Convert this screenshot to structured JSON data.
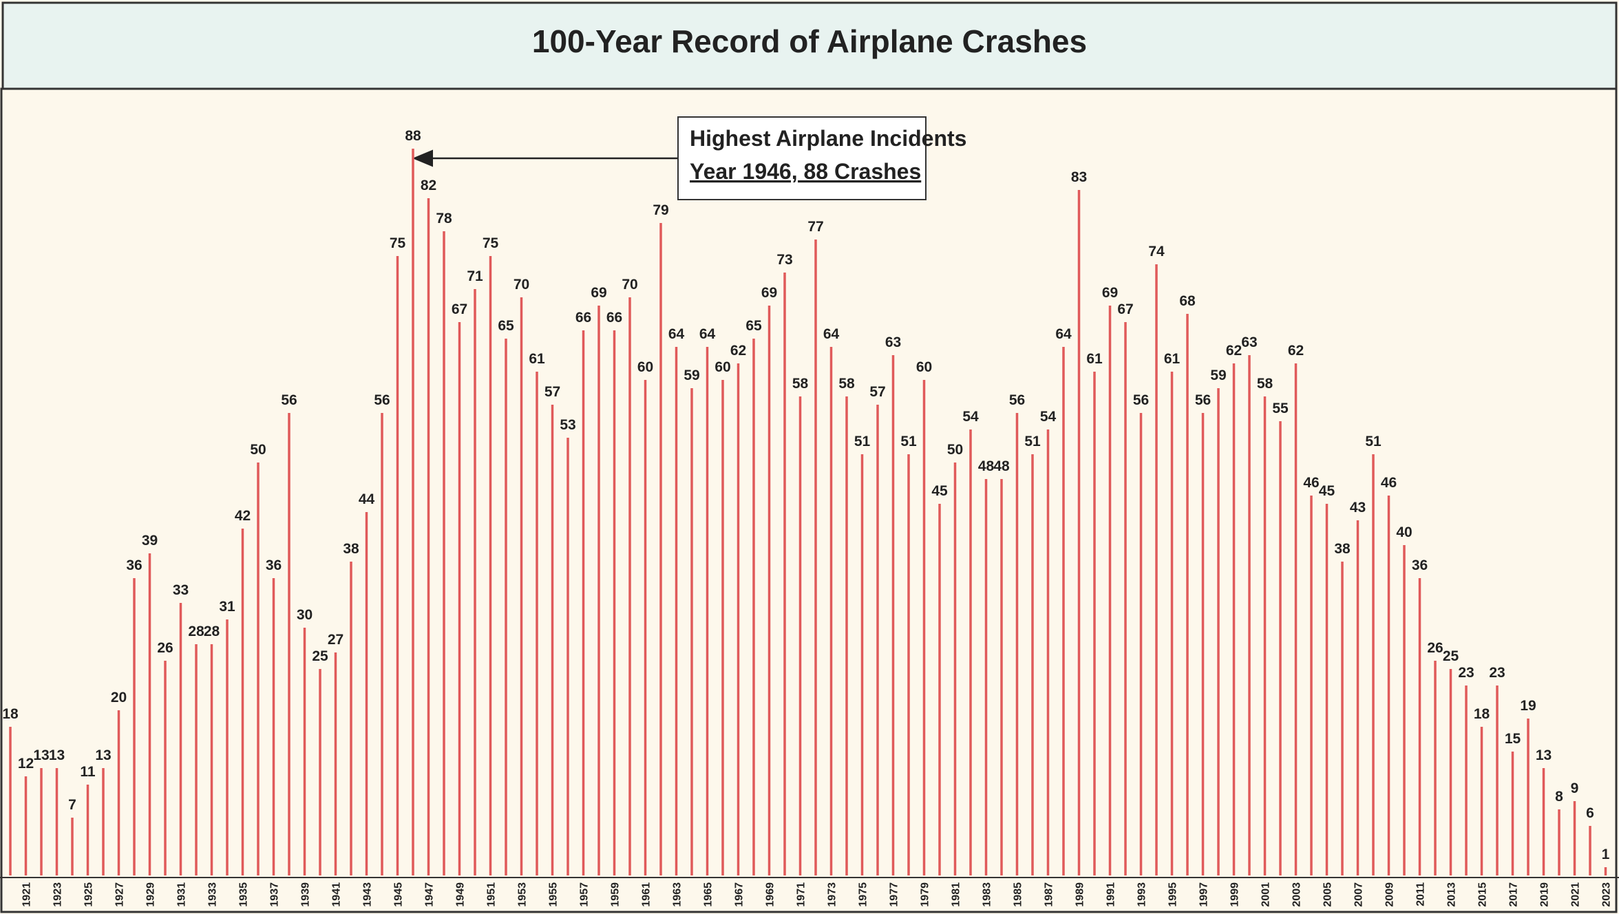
{
  "chart_data": {
    "type": "bar",
    "title": "100-Year Record of Airplane Crashes",
    "categories": [
      null,
      "1921",
      null,
      "1923",
      null,
      "1925",
      null,
      "1927",
      null,
      "1929",
      null,
      "1931",
      null,
      "1933",
      null,
      "1935",
      null,
      "1937",
      null,
      "1939",
      null,
      "1941",
      null,
      "1943",
      null,
      "1945",
      null,
      "1947",
      null,
      "1949",
      null,
      "1951",
      null,
      "1953",
      null,
      "1955",
      null,
      "1957",
      null,
      "1959",
      null,
      "1961",
      null,
      "1963",
      null,
      "1965",
      null,
      "1967",
      null,
      "1969",
      null,
      "1971",
      null,
      "1973",
      null,
      "1975",
      null,
      "1977",
      null,
      "1979",
      null,
      "1981",
      null,
      "1983",
      null,
      "1985",
      null,
      "1987",
      null,
      "1989",
      null,
      "1991",
      null,
      "1993",
      null,
      "1995",
      null,
      "1997",
      null,
      "1999",
      null,
      "2001",
      null,
      "2003",
      null,
      "2005",
      null,
      "2007",
      null,
      "2009",
      null,
      "2011",
      null,
      "2013",
      null,
      "2015",
      null,
      "2017",
      null,
      "2019",
      null,
      "2021",
      null,
      "2023"
    ],
    "values": [
      18,
      12,
      13,
      13,
      7,
      11,
      13,
      20,
      36,
      39,
      26,
      33,
      28,
      28,
      31,
      42,
      50,
      36,
      56,
      30,
      25,
      27,
      38,
      44,
      56,
      75,
      88,
      82,
      78,
      67,
      71,
      75,
      65,
      70,
      61,
      57,
      53,
      66,
      69,
      66,
      70,
      60,
      79,
      64,
      59,
      64,
      60,
      62,
      65,
      69,
      73,
      58,
      77,
      64,
      58,
      51,
      57,
      63,
      51,
      60,
      45,
      50,
      54,
      48,
      48,
      56,
      51,
      54,
      64,
      83,
      61,
      69,
      67,
      56,
      74,
      61,
      68,
      56,
      59,
      62,
      63,
      58,
      55,
      62,
      46,
      45,
      38,
      43,
      51,
      46,
      40,
      36,
      26,
      25,
      23,
      18,
      23,
      15,
      19,
      13,
      8,
      9,
      6,
      1
    ],
    "color": "#e05a5a",
    "ylim": [
      0,
      90
    ],
    "annotation": [
      "Highest Airplane Incidents",
      "Year 1946, 88 Crashes"
    ]
  }
}
